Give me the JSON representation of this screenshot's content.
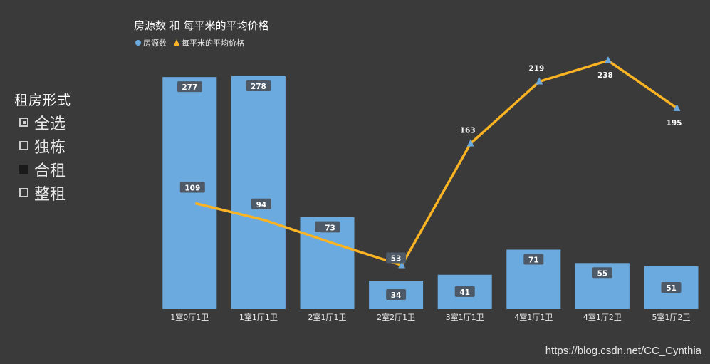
{
  "filter": {
    "title": "租房形式",
    "items": [
      {
        "label": "全选",
        "state": "partial"
      },
      {
        "label": "独栋",
        "state": "unchecked"
      },
      {
        "label": "合租",
        "state": "checked"
      },
      {
        "label": "整租",
        "state": "unchecked"
      }
    ]
  },
  "watermark": "https://blog.csdn.net/CC_Cynthia",
  "colors": {
    "bar": "#6aaadf",
    "line": "#f9b323",
    "marker": "#6aaadf",
    "label_bg": "#4d5966"
  },
  "chart_data": {
    "type": "bar",
    "title": "房源数 和 每平米的平均价格",
    "legend_position": "top-left",
    "categories": [
      "1室0厅1卫",
      "1室1厅1卫",
      "2室1厅1卫",
      "2室2厅1卫",
      "3室1厅1卫",
      "4室1厅1卫",
      "4室1厅2卫",
      "5室1厅2卫"
    ],
    "series": [
      {
        "name": "房源数",
        "type": "bar",
        "values": [
          277,
          278,
          110,
          34,
          41,
          71,
          55,
          51
        ]
      },
      {
        "name": "每平米的平均价格",
        "type": "line",
        "values": [
          109,
          94,
          73,
          53,
          163,
          219,
          238,
          195
        ]
      }
    ],
    "bar_ylim": [
      0,
      278
    ],
    "line_ylim": [
      34,
      238
    ],
    "grid": false
  }
}
